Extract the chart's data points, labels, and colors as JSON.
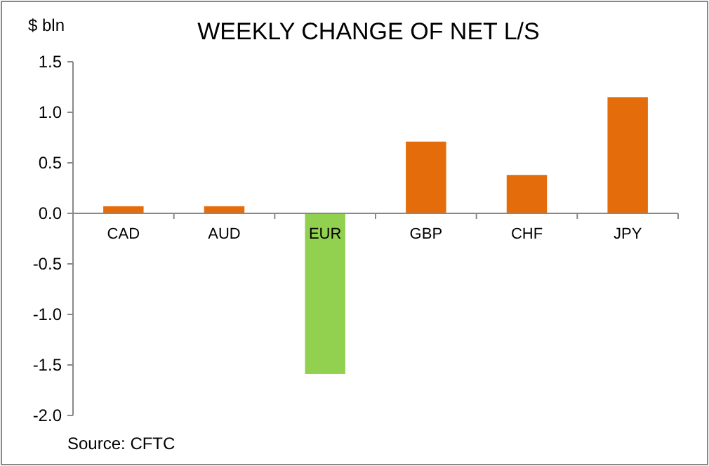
{
  "chart_data": {
    "type": "bar",
    "title": "WEEKLY CHANGE OF NET L/S",
    "ylabel": "$ bln",
    "categories": [
      "CAD",
      "AUD",
      "EUR",
      "GBP",
      "CHF",
      "JPY"
    ],
    "values": [
      0.07,
      0.07,
      -1.59,
      0.71,
      0.38,
      1.15
    ],
    "colors": [
      "#e46c0a",
      "#e46c0a",
      "#92d050",
      "#e46c0a",
      "#e46c0a",
      "#e46c0a"
    ],
    "ylim": [
      -2,
      1.5
    ],
    "yticks": [
      {
        "value": -2,
        "label": "-2.0"
      },
      {
        "value": -1.5,
        "label": "-1.5"
      },
      {
        "value": -1,
        "label": "-1.0"
      },
      {
        "value": -0.5,
        "label": "-0.5"
      },
      {
        "value": 0,
        "label": "0.0"
      },
      {
        "value": 0.5,
        "label": "0.5"
      },
      {
        "value": 1,
        "label": "1.0"
      },
      {
        "value": 1.5,
        "label": "1.5"
      }
    ],
    "grid": false,
    "annotations": [
      "Source: CFTC"
    ]
  }
}
